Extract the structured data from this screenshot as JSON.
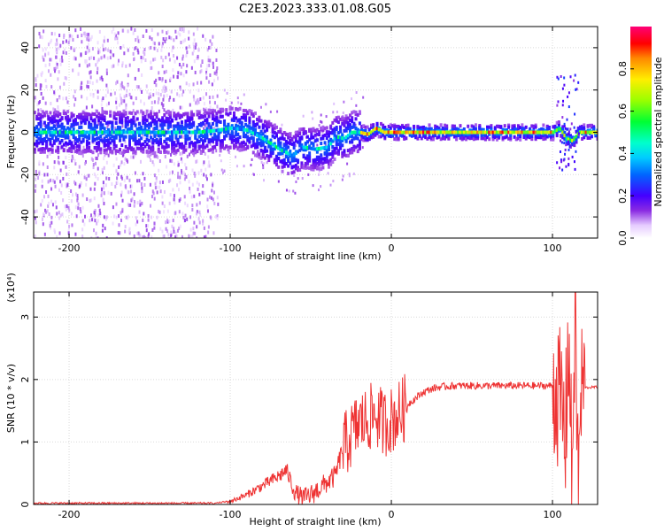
{
  "title": "C2E3.2023.333.01.08.G05",
  "chart_data": [
    {
      "type": "heatmap",
      "name": "frequency-spectrogram",
      "xlabel": "Height of straight line (km)",
      "ylabel": "Frequency (Hz)",
      "xlim": [
        -222,
        128
      ],
      "ylim": [
        -50,
        50
      ],
      "xticks": [
        -200,
        -100,
        0,
        100
      ],
      "xtick_labels": [
        "-200",
        "-100",
        "0",
        "100"
      ],
      "yticks": [
        -40,
        -20,
        0,
        20,
        40
      ],
      "ytick_labels": [
        "-40",
        "-20",
        "0",
        "20",
        "40"
      ],
      "colorbar": {
        "label": "Normalized spectral amplitude",
        "range": [
          0,
          1
        ],
        "ticks": [
          0.0,
          0.2,
          0.4,
          0.6,
          0.8
        ],
        "tick_labels": [
          "0.0",
          "0.2",
          "0.4",
          "0.6",
          "0.8"
        ]
      },
      "ridge": {
        "x": [
          -222,
          -200,
          -180,
          -160,
          -140,
          -120,
          -108,
          -100,
          -90,
          -80,
          -70,
          -62,
          -55,
          -48,
          -40,
          -35,
          -30,
          -25,
          -20,
          -15,
          -10,
          -5,
          0,
          20,
          40,
          60,
          80,
          100,
          104,
          108,
          112,
          116,
          128
        ],
        "freq": [
          0,
          0,
          0,
          0,
          0,
          0,
          1,
          2,
          1,
          -3,
          -8,
          -11,
          -7,
          -8,
          -7,
          -2,
          -3,
          0,
          0,
          -1,
          2,
          0,
          0,
          0,
          0,
          0,
          0,
          0,
          2,
          -3,
          -4,
          0,
          0
        ]
      },
      "grid": true
    },
    {
      "type": "line",
      "name": "snr",
      "xlabel": "Height of straight line (km)",
      "ylabel": "SNR (10 * v/v)",
      "ylabel_multiplier": "(x10⁴)",
      "xlim": [
        -222,
        128
      ],
      "ylim": [
        0,
        3.4
      ],
      "xticks": [
        -200,
        -100,
        0,
        100
      ],
      "xtick_labels": [
        "-200",
        "-100",
        "0",
        "100"
      ],
      "yticks": [
        0,
        1,
        2,
        3
      ],
      "ytick_labels": [
        "0",
        "1",
        "2",
        "3"
      ],
      "series": [
        {
          "color": "#ee3333",
          "x": [
            -222,
            -200,
            -150,
            -110,
            -100,
            -90,
            -80,
            -70,
            -65,
            -60,
            -55,
            -50,
            -45,
            -40,
            -35,
            -30,
            -25,
            -20,
            -15,
            -10,
            -5,
            0,
            5,
            10,
            15,
            20,
            25,
            30,
            40,
            50,
            60,
            70,
            80,
            90,
            100,
            103,
            106,
            108,
            110,
            112,
            114,
            116,
            118,
            120,
            128
          ],
          "y": [
            0.02,
            0.02,
            0.02,
            0.02,
            0.05,
            0.15,
            0.3,
            0.45,
            0.55,
            0.2,
            0.1,
            0.15,
            0.25,
            0.35,
            0.45,
            0.9,
            1.1,
            1.3,
            1.35,
            1.45,
            1.3,
            1.35,
            1.45,
            1.6,
            1.7,
            1.8,
            1.85,
            1.88,
            1.9,
            1.9,
            1.9,
            1.9,
            1.9,
            1.9,
            1.9,
            1.8,
            1.5,
            1.0,
            2.8,
            0.4,
            3.1,
            0.3,
            1.85,
            1.87,
            1.88
          ]
        }
      ],
      "grid": true
    }
  ]
}
